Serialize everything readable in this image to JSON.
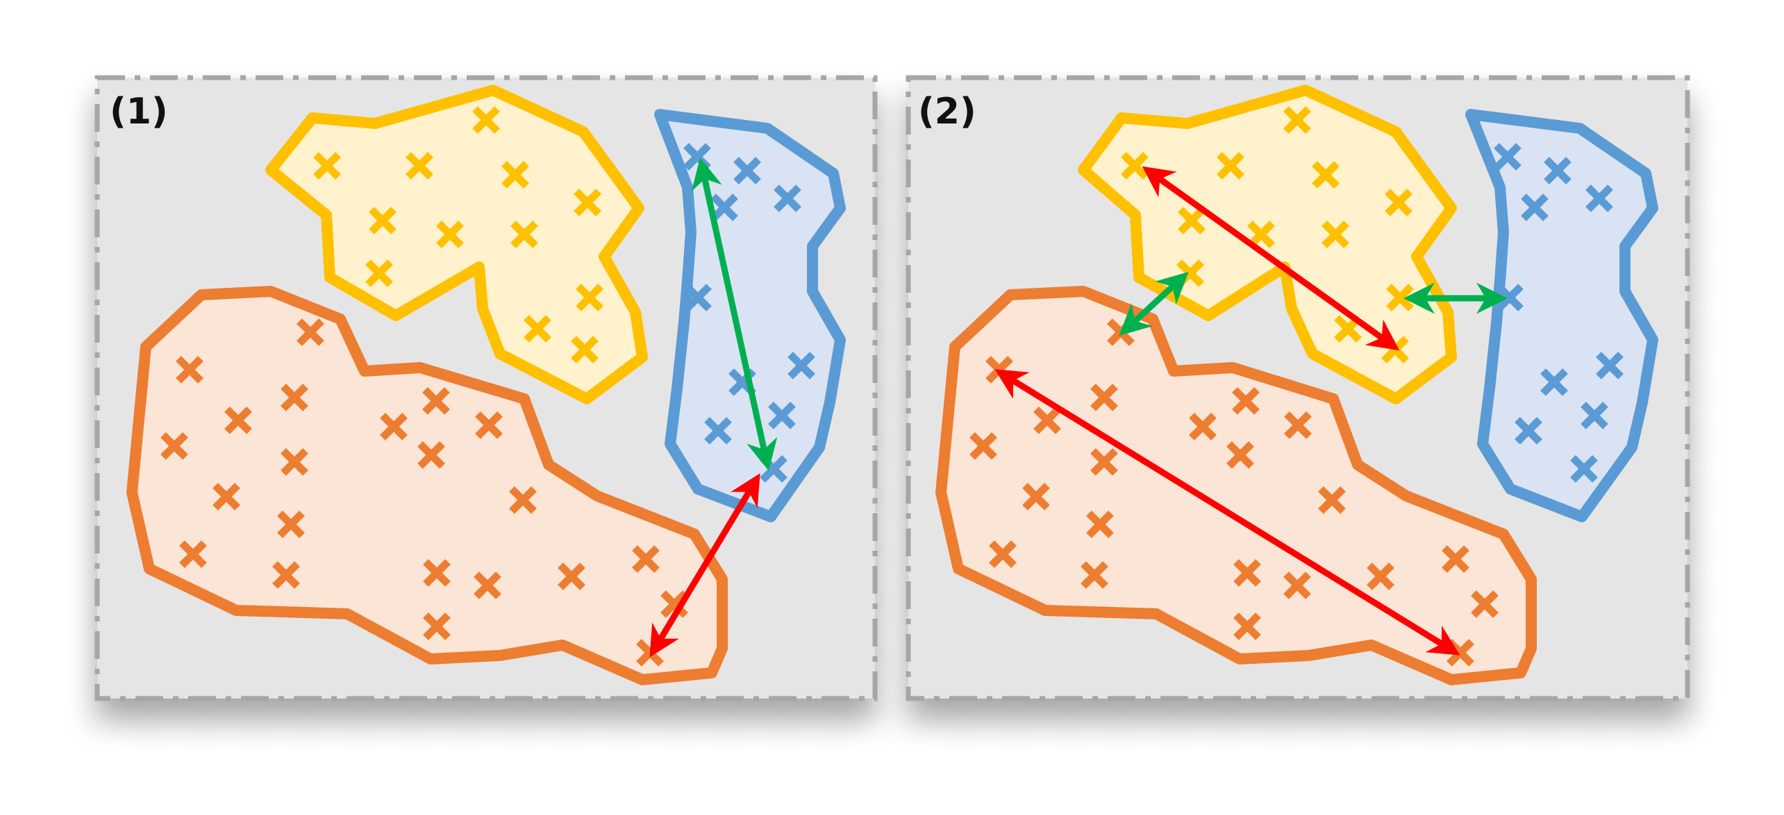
{
  "colors": {
    "frame_border": "#a6a6a6",
    "frame_fill": "#e5e5e5",
    "yellow_stroke": "#ffc000",
    "yellow_fill": "#fff2cc",
    "blue_stroke": "#5b9bd5",
    "blue_fill": "#dae3f3",
    "orange_stroke": "#ed7d31",
    "orange_fill": "#fbe5d6",
    "green_arrow": "#00b050",
    "red_arrow": "#ff0000"
  },
  "panels": [
    {
      "label": "(1)"
    },
    {
      "label": "(2)"
    }
  ],
  "icons": {
    "data_point": "x-mark-icon",
    "arrow": "double-headed-arrow"
  }
}
